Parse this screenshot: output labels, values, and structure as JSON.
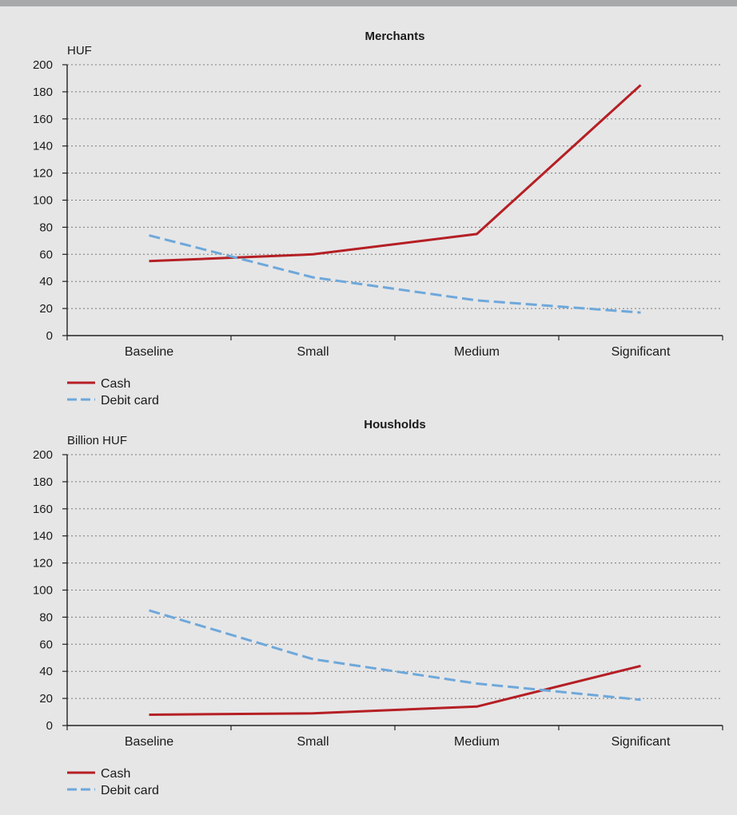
{
  "chart_data": [
    {
      "type": "line",
      "title": "Merchants",
      "ylabel": "HUF",
      "xlabel": "",
      "categories": [
        "Baseline",
        "Small",
        "Medium",
        "Significant"
      ],
      "ylim": [
        0,
        200
      ],
      "yticks": [
        0,
        20,
        40,
        60,
        80,
        100,
        120,
        140,
        160,
        180,
        200
      ],
      "grid": true,
      "legend_position": "bottom-left",
      "series": [
        {
          "name": "Cash",
          "values": [
            55,
            60,
            75,
            185
          ],
          "color": "#b51f24",
          "dash": "solid"
        },
        {
          "name": "Debit card",
          "values": [
            74,
            43,
            26,
            17
          ],
          "color": "#6ea8da",
          "dash": "dashed"
        }
      ]
    },
    {
      "type": "line",
      "title": "Housholds",
      "ylabel": "Billion HUF",
      "xlabel": "",
      "categories": [
        "Baseline",
        "Small",
        "Medium",
        "Significant"
      ],
      "ylim": [
        0,
        200
      ],
      "yticks": [
        0,
        20,
        40,
        60,
        80,
        100,
        120,
        140,
        160,
        180,
        200
      ],
      "grid": true,
      "legend_position": "bottom-left",
      "series": [
        {
          "name": "Cash",
          "values": [
            8,
            9,
            14,
            44
          ],
          "color": "#b51f24",
          "dash": "solid"
        },
        {
          "name": "Debit card",
          "values": [
            85,
            49,
            31,
            19
          ],
          "color": "#6ea8da",
          "dash": "dashed"
        }
      ]
    }
  ]
}
